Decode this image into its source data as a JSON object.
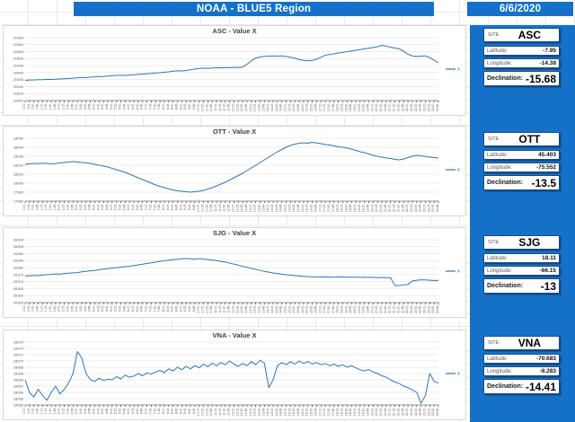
{
  "header": {
    "title": "NOAA - BLUE5 Region",
    "date": "6/6/2020"
  },
  "colors": {
    "accent": "#1571c8",
    "line": "#2e75b6",
    "gridline": "#d9d9d9",
    "axis_text": "#595959"
  },
  "x_labels": [
    "0:00",
    "0:15",
    "0:30",
    "0:45",
    "1:00",
    "1:15",
    "1:30",
    "1:45",
    "2:00",
    "2:15",
    "2:30",
    "2:45",
    "3:00",
    "3:15",
    "3:30",
    "3:45",
    "4:00",
    "4:15",
    "4:30",
    "4:45",
    "5:00",
    "5:15",
    "5:30",
    "5:45",
    "6:00",
    "6:15",
    "6:30",
    "6:45",
    "7:00",
    "7:15",
    "7:30",
    "7:45",
    "8:00",
    "8:15",
    "8:30",
    "8:45",
    "9:00",
    "9:15",
    "9:30",
    "9:45",
    "10:00",
    "10:15",
    "10:30",
    "10:45",
    "11:00",
    "11:15",
    "11:30",
    "11:45",
    "12:00",
    "12:15",
    "12:30",
    "12:45",
    "13:00",
    "13:15",
    "13:30",
    "13:45",
    "14:00",
    "14:15",
    "14:30",
    "14:45",
    "15:00",
    "15:15",
    "15:30",
    "15:45",
    "16:00",
    "16:15",
    "16:30",
    "16:45",
    "17:00",
    "17:15",
    "17:30",
    "17:45",
    "18:00",
    "18:15",
    "18:30",
    "18:45",
    "19:00",
    "19:15",
    "19:30",
    "19:45",
    "20:00",
    "20:15",
    "20:30",
    "20:45",
    "21:00",
    "21:15",
    "21:30",
    "21:45",
    "22:00",
    "22:15",
    "22:30",
    "22:45",
    "23:00",
    "23:15",
    "23:30",
    "23:45"
  ],
  "chart_data": [
    {
      "type": "line",
      "title": "ASC - Value X",
      "legend": "X",
      "ylim": [
        20420,
        20465
      ],
      "yticks": [
        20420,
        20425,
        20430,
        20435,
        20440,
        20445,
        20450,
        20455,
        20460,
        20465
      ],
      "values": [
        20434.5,
        20434.7,
        20434.8,
        20435,
        20435,
        20435.2,
        20435.1,
        20435.3,
        20435.5,
        20435.6,
        20435.8,
        20436,
        20436.3,
        20436.5,
        20436.4,
        20436.8,
        20437,
        20437.3,
        20437.2,
        20437.5,
        20437.8,
        20438,
        20438.2,
        20438,
        20438.3,
        20438.5,
        20438.8,
        20439,
        20439.2,
        20439.5,
        20439.8,
        20440,
        20440.3,
        20440.6,
        20441,
        20441.3,
        20441.2,
        20441.5,
        20442,
        20442.5,
        20443,
        20443.2,
        20443,
        20443.3,
        20443.5,
        20443.4,
        20443.6,
        20443.5,
        20443.8,
        20443.6,
        20444,
        20446,
        20448.5,
        20450.5,
        20451.2,
        20451.6,
        20451.8,
        20452,
        20451.8,
        20452,
        20451.5,
        20451,
        20450.3,
        20449.3,
        20448.8,
        20448.5,
        20448.8,
        20449.5,
        20451,
        20452.5,
        20453,
        20453.5,
        20454,
        20454.5,
        20455,
        20455.5,
        20456,
        20456.5,
        20457,
        20457.5,
        20458,
        20458.6,
        20459.5,
        20459,
        20458.2,
        20457.6,
        20457,
        20455.2,
        20453.2,
        20452,
        20451.5,
        20451.8,
        20452,
        20450.8,
        20448.8,
        20447
      ]
    },
    {
      "type": "line",
      "title": "OTT - Value X",
      "legend": "X",
      "ylim": [
        17980,
        18050
      ],
      "yticks": [
        17980,
        17990,
        18000,
        18010,
        18020,
        18030,
        18040,
        18050
      ],
      "values": [
        18021,
        18021.5,
        18022,
        18021.8,
        18022.3,
        18022,
        18021.5,
        18022,
        18022.5,
        18023,
        18023.5,
        18024,
        18023.5,
        18023,
        18022.5,
        18022,
        18021,
        18020,
        18019,
        18018,
        18016.5,
        18015,
        18013.5,
        18012,
        18010,
        18008,
        18006,
        18004,
        18002,
        18000,
        17998,
        17996.5,
        17995,
        17993.5,
        17992.5,
        17991.5,
        17991,
        17990.5,
        17990,
        17990.5,
        17991,
        17992,
        17993.5,
        17995,
        17997,
        17999,
        18001,
        18003.5,
        18006,
        18008.5,
        18011,
        18014,
        18017,
        18020,
        18023,
        18026,
        18029,
        18032,
        18035,
        18037.5,
        18040,
        18042,
        18043.5,
        18044.5,
        18045,
        18044.5,
        18045.5,
        18044.8,
        18044,
        18043,
        18042.5,
        18041.5,
        18040.5,
        18040,
        18039,
        18038,
        18036.5,
        18035,
        18034,
        18032.5,
        18031,
        18030,
        18029,
        18028,
        18027.5,
        18026.5,
        18026,
        18027,
        18028.5,
        18030,
        18031,
        18030.5,
        18029.5,
        18029,
        18028.5,
        18028
      ]
    },
    {
      "type": "line",
      "title": "SJG - Value X",
      "legend": "X",
      "ylim": [
        26355,
        26400
      ],
      "yticks": [
        26355,
        26360,
        26365,
        26370,
        26375,
        26380,
        26385,
        26390,
        26395,
        26400
      ],
      "values": [
        26374,
        26374.2,
        26374.5,
        26374.3,
        26374.8,
        26375,
        26375.2,
        26375.5,
        26375.3,
        26375.8,
        26376,
        26376.3,
        26376.5,
        26377,
        26377.3,
        26377.8,
        26378,
        26378.5,
        26379,
        26379.3,
        26379.8,
        26380,
        26380.3,
        26380.8,
        26381,
        26381.5,
        26382,
        26382.5,
        26383,
        26383.5,
        26384,
        26384.5,
        26385,
        26385.3,
        26385.8,
        26386,
        26386.3,
        26386.5,
        26386.3,
        26386,
        26386.5,
        26386.2,
        26385.8,
        26385.5,
        26385,
        26384.5,
        26384,
        26383.3,
        26382.5,
        26381.8,
        26381,
        26380.3,
        26379.5,
        26378.8,
        26378,
        26377.3,
        26376.8,
        26376.2,
        26375.8,
        26375.3,
        26375,
        26374.6,
        26374.3,
        26374,
        26373.8,
        26373.6,
        26373.5,
        26373.4,
        26373.3,
        26373.4,
        26373.3,
        26373.2,
        26373.4,
        26373.3,
        26373.2,
        26373.3,
        26373.1,
        26373.2,
        26373,
        26373.1,
        26373,
        26372.9,
        26373,
        26372.8,
        26372.9,
        26367,
        26367.3,
        26367.6,
        26368,
        26370.5,
        26371,
        26371.3,
        26371.2,
        26371,
        26370.8,
        26370.9
      ]
    },
    {
      "type": "line",
      "title": "VNA - Value X",
      "legend": "X",
      "ylim": [
        18056,
        18076
      ],
      "yticks": [
        18056,
        18058,
        18060,
        18062,
        18064,
        18066,
        18068,
        18070,
        18072,
        18074,
        18076
      ],
      "values": [
        18064,
        18060,
        18058.5,
        18061,
        18059,
        18057.5,
        18060,
        18062,
        18059.5,
        18061,
        18063,
        18066,
        18073,
        18071,
        18066,
        18064,
        18063.5,
        18064.5,
        18063.8,
        18064.2,
        18064,
        18065,
        18064.3,
        18065.5,
        18064.8,
        18065.2,
        18066,
        18065.3,
        18066.2,
        18065.8,
        18066.5,
        18067,
        18066.3,
        18067.5,
        18066.8,
        18068,
        18067.2,
        18068.3,
        18067.5,
        18068.5,
        18067.8,
        18069,
        18068.2,
        18069.3,
        18068.5,
        18069.5,
        18068.8,
        18070,
        18069,
        18068.3,
        18069.2,
        18068.5,
        18069.8,
        18068.8,
        18070.2,
        18069.3,
        18061.5,
        18064,
        18068.5,
        18069.5,
        18068.8,
        18069.8,
        18069,
        18070,
        18069.2,
        18069.8,
        18069,
        18069.5,
        18068.8,
        18069.2,
        18068.5,
        18069,
        18068.3,
        18068.8,
        18068,
        18068.5,
        18067.8,
        18067.2,
        18066.8,
        18067.3,
        18066.5,
        18066,
        18065.3,
        18064.8,
        18064,
        18063.3,
        18062.8,
        18062,
        18061.5,
        18060.8,
        18060,
        18056.5,
        18059,
        18066,
        18063.5,
        18063
      ]
    }
  ],
  "sidebar": {
    "labels": {
      "site": "SITE:",
      "latitude": "Latitude:",
      "longitude": "Longitude:",
      "declination": "Declination:"
    },
    "cards": [
      {
        "site": "ASC",
        "latitude": "-7.95",
        "longitude": "-14.38",
        "declination": "-15.68"
      },
      {
        "site": "OTT",
        "latitude": "45.403",
        "longitude": "-75.552",
        "declination": "-13.5"
      },
      {
        "site": "SJG",
        "latitude": "18.11",
        "longitude": "-66.15",
        "declination": "-13"
      },
      {
        "site": "VNA",
        "latitude": "-70.683",
        "longitude": "-8.283",
        "declination": "-14.41"
      }
    ]
  }
}
